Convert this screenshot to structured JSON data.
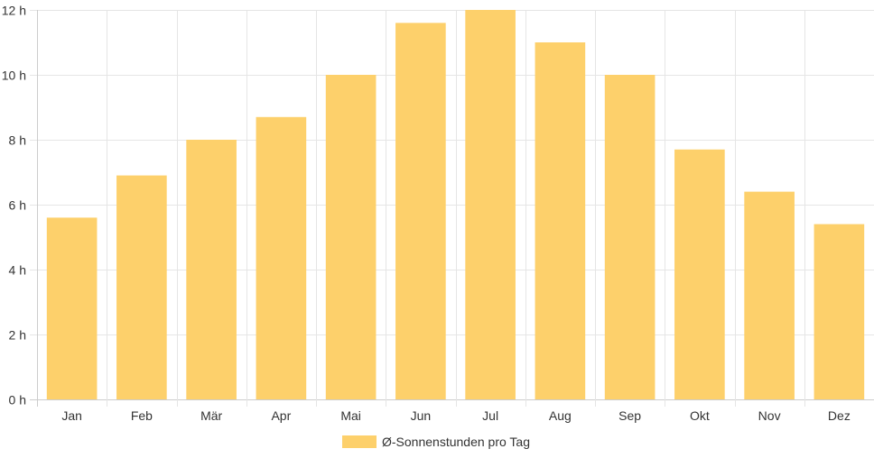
{
  "chart_data": {
    "type": "bar",
    "categories": [
      "Jan",
      "Feb",
      "Mär",
      "Apr",
      "Mai",
      "Jun",
      "Jul",
      "Aug",
      "Sep",
      "Okt",
      "Nov",
      "Dez"
    ],
    "series": [
      {
        "name": "Ø-Sonnenstunden pro Tag",
        "values": [
          5.6,
          6.9,
          8.0,
          8.7,
          10.0,
          11.6,
          12.0,
          11.0,
          10.0,
          7.7,
          6.4,
          5.4
        ]
      }
    ],
    "ylim": [
      0,
      12
    ],
    "yticks": [
      0,
      2,
      4,
      6,
      8,
      10,
      12
    ],
    "ytick_labels": [
      "0 h",
      "2 h",
      "4 h",
      "6 h",
      "8 h",
      "10 h",
      "12 h"
    ],
    "grid": true,
    "legend_position": "bottom",
    "colors": {
      "bar": "#fdd06b",
      "grid": "#e5e5e5",
      "axis": "#cccccc",
      "text": "#333333"
    }
  }
}
